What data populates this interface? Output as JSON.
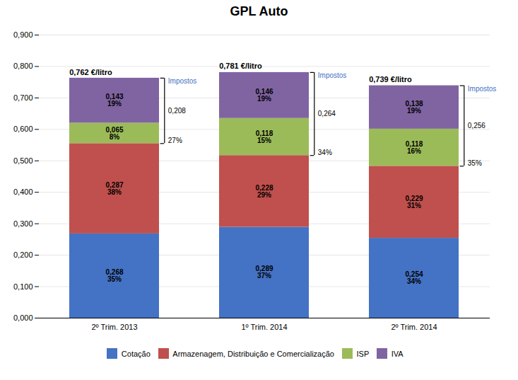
{
  "chart_data": {
    "type": "bar",
    "stacked": true,
    "title": "GPL Auto",
    "categories": [
      "2º Trim. 2013",
      "1º Trim. 2014",
      "2º Trim. 2014"
    ],
    "series": [
      {
        "name": "Cotação",
        "color": "#4472C4",
        "values": [
          0.268,
          0.289,
          0.254
        ],
        "value_labels": [
          "0,268",
          "0,289",
          "0,254"
        ],
        "share_labels": [
          "35%",
          "37%",
          "34%"
        ]
      },
      {
        "name": "Armazenagem, Distribuição e Comercialização",
        "color": "#C0504D",
        "values": [
          0.287,
          0.228,
          0.229
        ],
        "value_labels": [
          "0,287",
          "0,228",
          "0,229"
        ],
        "share_labels": [
          "38%",
          "29%",
          "31%"
        ]
      },
      {
        "name": "ISP",
        "color": "#9BBB59",
        "values": [
          0.065,
          0.118,
          0.118
        ],
        "value_labels": [
          "0,065",
          "0,118",
          "0,118"
        ],
        "share_labels": [
          "8%",
          "15%",
          "16%"
        ]
      },
      {
        "name": "IVA",
        "color": "#8064A2",
        "values": [
          0.143,
          0.146,
          0.138
        ],
        "value_labels": [
          "0,143",
          "0,146",
          "0,138"
        ],
        "share_labels": [
          "19%",
          "19%",
          "19%"
        ]
      }
    ],
    "data_labels": true,
    "totals": [
      0.762,
      0.781,
      0.739
    ],
    "total_labels": [
      "0,762 €/litro",
      "0,781 €/litro",
      "0,739 €/litro"
    ],
    "impostos": {
      "label": "Impostos",
      "color": "#4472C4",
      "series": [
        "ISP",
        "IVA"
      ],
      "values": [
        0.208,
        0.264,
        0.256
      ],
      "value_labels": [
        "0,208",
        "0,264",
        "0,256"
      ],
      "share_labels": [
        "27%",
        "34%",
        "35%"
      ]
    },
    "ylim": [
      0,
      0.9
    ],
    "yticks": [
      {
        "value": 0.0,
        "label": "0,000"
      },
      {
        "value": 0.1,
        "label": "0,100"
      },
      {
        "value": 0.2,
        "label": "0,200"
      },
      {
        "value": 0.3,
        "label": "0,300"
      },
      {
        "value": 0.4,
        "label": "0,400"
      },
      {
        "value": 0.5,
        "label": "0,500"
      },
      {
        "value": 0.6,
        "label": "0,600"
      },
      {
        "value": 0.7,
        "label": "0,700"
      },
      {
        "value": 0.8,
        "label": "0,800"
      },
      {
        "value": 0.9,
        "label": "0,900"
      }
    ],
    "grid": true,
    "legend": "bottom"
  }
}
